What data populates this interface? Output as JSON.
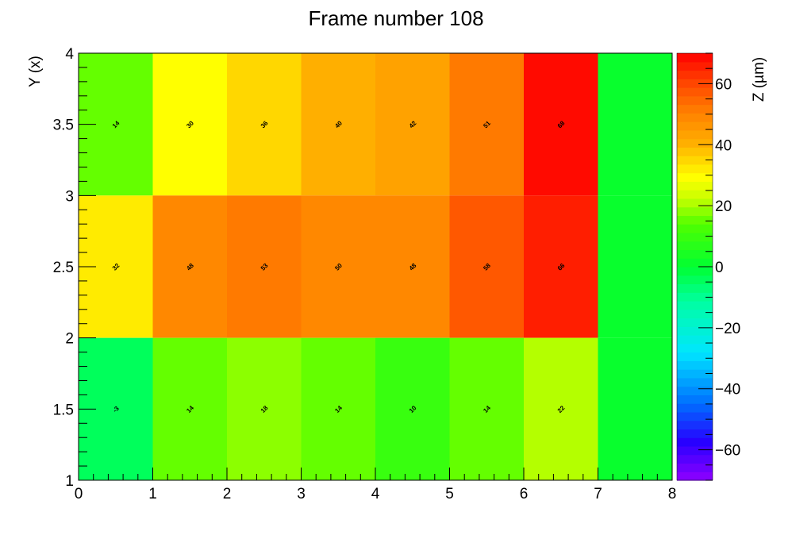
{
  "chart_data": {
    "type": "heatmap",
    "title": "Frame number 108",
    "xlabel": "",
    "ylabel": "Y (x)",
    "zlabel": "Z (µm)",
    "xlim": [
      0,
      8
    ],
    "ylim": [
      1,
      4
    ],
    "zlim": [
      -70,
      70
    ],
    "x_ticks": [
      "0",
      "1",
      "2",
      "3",
      "4",
      "5",
      "6",
      "7",
      "8"
    ],
    "y_ticks": [
      "1",
      "1.5",
      "2",
      "2.5",
      "3",
      "3.5",
      "4"
    ],
    "z_ticks": [
      "60",
      "40",
      "20",
      "0",
      "−20",
      "−40",
      "−60"
    ],
    "x_bin_edges": [
      0,
      1,
      2,
      3,
      4,
      5,
      6,
      7,
      8
    ],
    "y_bin_edges": [
      1,
      2,
      3,
      4
    ],
    "rows": [
      {
        "y_range": [
          3,
          4
        ],
        "values": [
          14,
          30,
          36,
          40,
          42,
          51,
          68,
          0
        ],
        "labels": [
          "14",
          "30",
          "36",
          "40",
          "42",
          "51",
          "68",
          ""
        ]
      },
      {
        "y_range": [
          2,
          3
        ],
        "values": [
          32,
          48,
          53,
          50,
          48,
          58,
          66,
          0
        ],
        "labels": [
          "32",
          "48",
          "53",
          "50",
          "48",
          "58",
          "66",
          ""
        ]
      },
      {
        "y_range": [
          1,
          2
        ],
        "values": [
          -3,
          14,
          18,
          14,
          10,
          14,
          22,
          0
        ],
        "labels": [
          "-3",
          "14",
          "18",
          "14",
          "10",
          "14",
          "22",
          ""
        ]
      }
    ],
    "palette": "rainbow",
    "grid": false,
    "legend": "colorbar-right"
  }
}
